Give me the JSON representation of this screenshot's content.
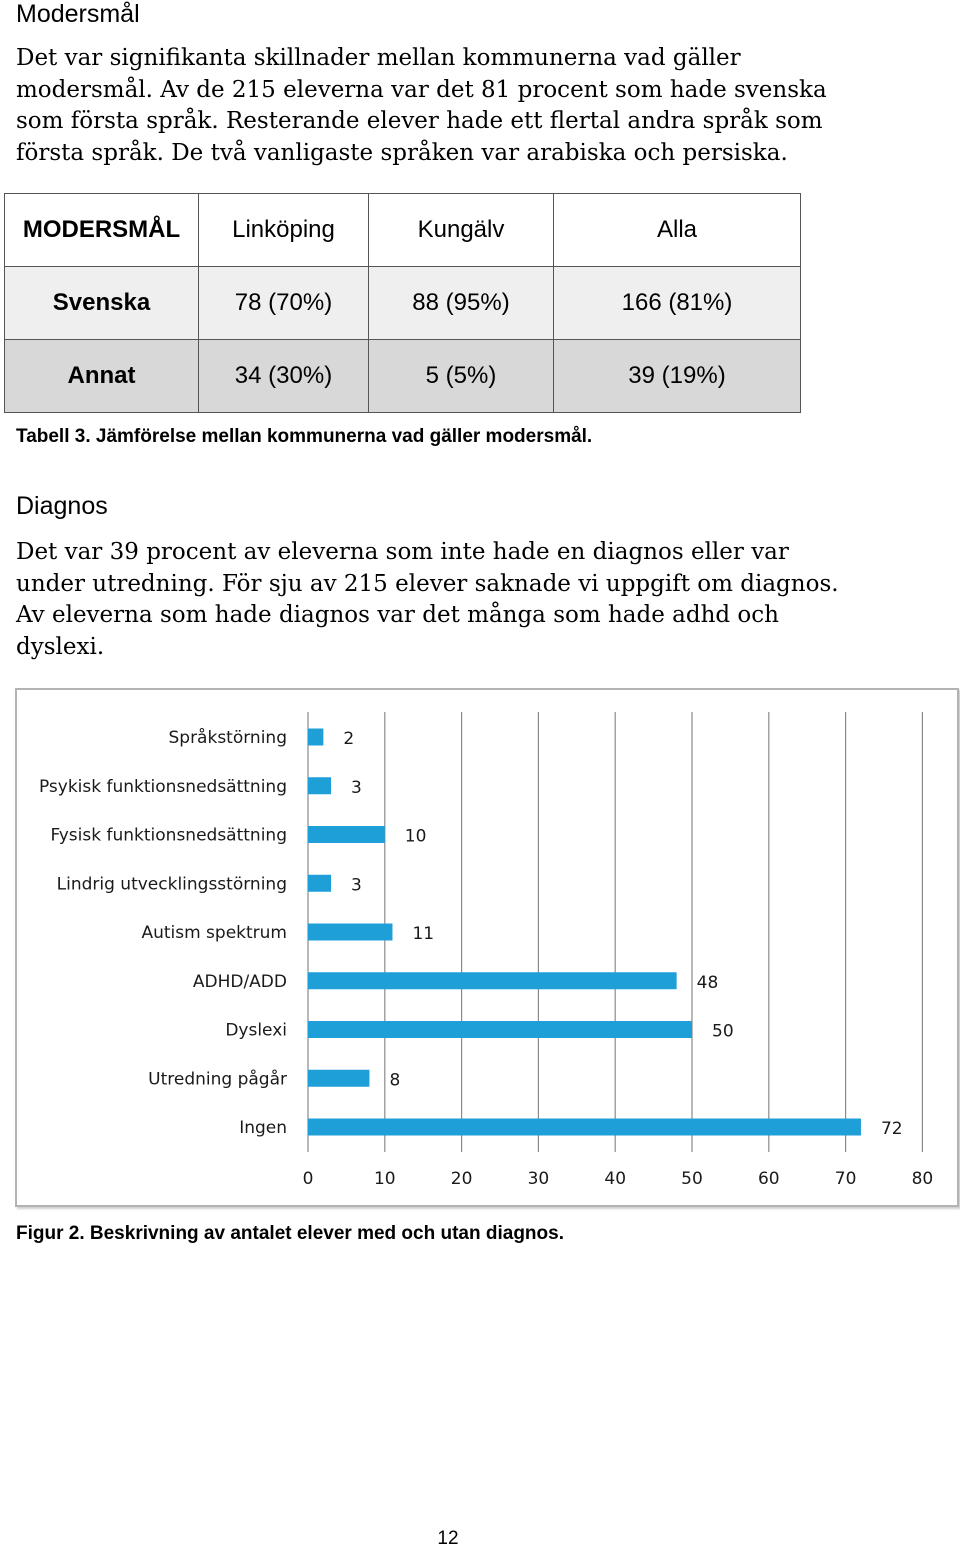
{
  "section1": {
    "heading": "Modersmål",
    "paragraph_lines": [
      "Det var signifikanta skillnader mellan kommunerna vad gäller",
      "modersmål. Av de 215 eleverna var det 81 procent som hade svenska",
      "som första språk. Resterande elever hade ett flertal andra språk som",
      "första språk. De två vanligaste språken var arabiska och persiska."
    ]
  },
  "table": {
    "headers": [
      "MODERSMÅL",
      "Linköping",
      "Kungälv",
      "Alla"
    ],
    "rows": [
      [
        "Svenska",
        "78 (70%)",
        "88 (95%)",
        "166 (81%)"
      ],
      [
        "Annat",
        "34 (30%)",
        "5 (5%)",
        "39 (19%)"
      ]
    ],
    "caption": "Tabell 3. Jämförelse mellan kommunerna vad gäller modersmål."
  },
  "section2": {
    "heading": "Diagnos",
    "paragraph_lines": [
      "Det var 39 procent av eleverna som inte hade en diagnos eller var",
      "under utredning. För sju av 215 elever saknade vi uppgift om diagnos.",
      "Av eleverna som hade diagnos var det många som hade adhd och",
      "dyslexi."
    ]
  },
  "chart_data": {
    "type": "bar",
    "orientation": "horizontal",
    "categories": [
      "Språkstörning",
      "Psykisk funktionsnedsättning",
      "Fysisk funktionsnedsättning",
      "Lindrig utvecklingsstörning",
      "Autism spektrum",
      "ADHD/ADD",
      "Dyslexi",
      "Utredning pågår",
      "Ingen"
    ],
    "values": [
      2,
      3,
      10,
      3,
      11,
      48,
      50,
      8,
      72
    ],
    "xlim": [
      0,
      80
    ],
    "x_ticks": [
      0,
      10,
      20,
      30,
      40,
      50,
      60,
      70,
      80
    ],
    "grid": "vertical",
    "bar_color": "#1f9fd8",
    "title": "",
    "xlabel": "",
    "ylabel": "",
    "caption": "Figur 2. Beskrivning av antalet elever med och utan diagnos."
  },
  "page_number": "12"
}
